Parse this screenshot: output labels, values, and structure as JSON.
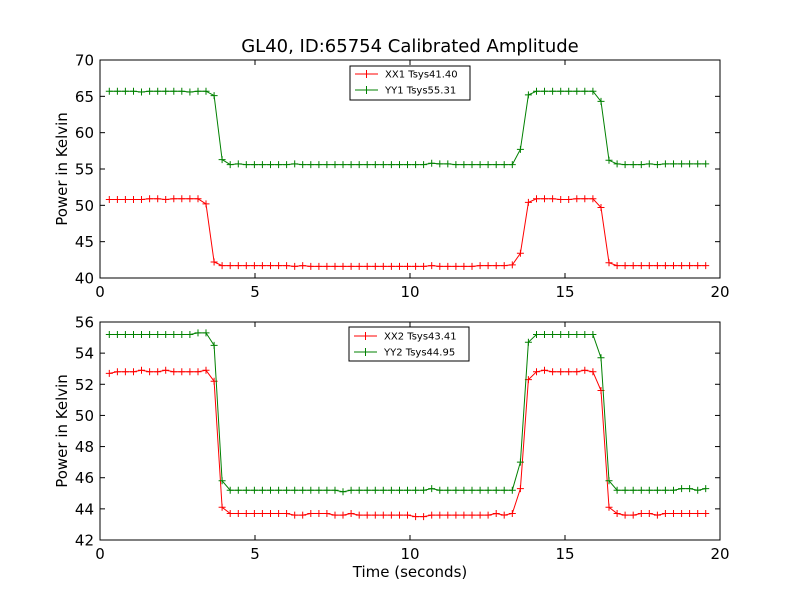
{
  "chart_data": [
    {
      "type": "line",
      "title": "GL40, ID:65754 Calibrated Amplitude",
      "xlabel": "",
      "ylabel": "Power in Kelvin",
      "xlim": [
        0,
        20
      ],
      "ylim": [
        40,
        70
      ],
      "xticks": [
        "0",
        "5",
        "10",
        "15",
        "20"
      ],
      "yticks": [
        "40",
        "45",
        "50",
        "55",
        "60",
        "65",
        "70"
      ],
      "grid": false,
      "legend": "top-center",
      "x": [
        0.3,
        0.56,
        0.82,
        1.08,
        1.34,
        1.6,
        1.86,
        2.12,
        2.38,
        2.64,
        2.9,
        3.16,
        3.42,
        3.68,
        3.94,
        4.2,
        4.46,
        4.72,
        4.98,
        5.24,
        5.5,
        5.76,
        6.02,
        6.28,
        6.54,
        6.8,
        7.06,
        7.32,
        7.58,
        7.84,
        8.1,
        8.36,
        8.62,
        8.88,
        9.14,
        9.4,
        9.66,
        9.92,
        10.18,
        10.44,
        10.7,
        10.96,
        11.22,
        11.48,
        11.74,
        12.0,
        12.26,
        12.52,
        12.78,
        13.04,
        13.3,
        13.56,
        13.82,
        14.08,
        14.34,
        14.6,
        14.86,
        15.12,
        15.38,
        15.64,
        15.9,
        16.16,
        16.42,
        16.68,
        16.94,
        17.2,
        17.46,
        17.72,
        17.98,
        18.24,
        18.5,
        18.76,
        19.02,
        19.28,
        19.54
      ],
      "series": [
        {
          "name": "XX1 Tsys41.40",
          "color": "#ff0000",
          "values": [
            50.8,
            50.8,
            50.8,
            50.8,
            50.8,
            50.9,
            50.9,
            50.8,
            50.9,
            50.9,
            50.9,
            50.9,
            50.2,
            42.2,
            41.7,
            41.7,
            41.7,
            41.7,
            41.7,
            41.7,
            41.7,
            41.7,
            41.7,
            41.6,
            41.7,
            41.6,
            41.6,
            41.6,
            41.6,
            41.6,
            41.6,
            41.6,
            41.6,
            41.6,
            41.6,
            41.6,
            41.6,
            41.6,
            41.6,
            41.6,
            41.7,
            41.6,
            41.6,
            41.6,
            41.6,
            41.6,
            41.7,
            41.7,
            41.7,
            41.7,
            41.8,
            43.4,
            50.4,
            50.9,
            50.9,
            50.9,
            50.8,
            50.8,
            50.9,
            50.9,
            50.9,
            49.7,
            42.1,
            41.7,
            41.7,
            41.7,
            41.7,
            41.7,
            41.7,
            41.7,
            41.7,
            41.7,
            41.7,
            41.7,
            41.7
          ]
        },
        {
          "name": "YY1 Tsys55.31",
          "color": "#008000",
          "values": [
            65.7,
            65.7,
            65.7,
            65.7,
            65.6,
            65.7,
            65.7,
            65.7,
            65.7,
            65.7,
            65.6,
            65.7,
            65.7,
            65.1,
            56.3,
            55.6,
            55.7,
            55.6,
            55.6,
            55.6,
            55.6,
            55.6,
            55.6,
            55.7,
            55.6,
            55.6,
            55.6,
            55.6,
            55.6,
            55.6,
            55.6,
            55.6,
            55.6,
            55.6,
            55.6,
            55.6,
            55.6,
            55.6,
            55.6,
            55.6,
            55.8,
            55.7,
            55.7,
            55.6,
            55.6,
            55.6,
            55.6,
            55.6,
            55.6,
            55.6,
            55.6,
            57.7,
            65.2,
            65.7,
            65.7,
            65.7,
            65.7,
            65.7,
            65.7,
            65.7,
            65.7,
            64.3,
            56.2,
            55.7,
            55.6,
            55.6,
            55.6,
            55.7,
            55.6,
            55.7,
            55.7,
            55.7,
            55.7,
            55.7,
            55.7
          ]
        }
      ]
    },
    {
      "type": "line",
      "title": "",
      "xlabel": "Time (seconds)",
      "ylabel": "Power in Kelvin",
      "xlim": [
        0,
        20
      ],
      "ylim": [
        42,
        56
      ],
      "xticks": [
        "0",
        "5",
        "10",
        "15",
        "20"
      ],
      "yticks": [
        "42",
        "44",
        "46",
        "48",
        "50",
        "52",
        "54",
        "56"
      ],
      "grid": false,
      "legend": "top-center",
      "x": [
        0.3,
        0.56,
        0.82,
        1.08,
        1.34,
        1.6,
        1.86,
        2.12,
        2.38,
        2.64,
        2.9,
        3.16,
        3.42,
        3.68,
        3.94,
        4.2,
        4.46,
        4.72,
        4.98,
        5.24,
        5.5,
        5.76,
        6.02,
        6.28,
        6.54,
        6.8,
        7.06,
        7.32,
        7.58,
        7.84,
        8.1,
        8.36,
        8.62,
        8.88,
        9.14,
        9.4,
        9.66,
        9.92,
        10.18,
        10.44,
        10.7,
        10.96,
        11.22,
        11.48,
        11.74,
        12.0,
        12.26,
        12.52,
        12.78,
        13.04,
        13.3,
        13.56,
        13.82,
        14.08,
        14.34,
        14.6,
        14.86,
        15.12,
        15.38,
        15.64,
        15.9,
        16.16,
        16.42,
        16.68,
        16.94,
        17.2,
        17.46,
        17.72,
        17.98,
        18.24,
        18.5,
        18.76,
        19.02,
        19.28,
        19.54
      ],
      "series": [
        {
          "name": "XX2 Tsys43.41",
          "color": "#ff0000",
          "values": [
            52.7,
            52.8,
            52.8,
            52.8,
            52.9,
            52.8,
            52.8,
            52.9,
            52.8,
            52.8,
            52.8,
            52.8,
            52.9,
            52.2,
            44.1,
            43.7,
            43.7,
            43.7,
            43.7,
            43.7,
            43.7,
            43.7,
            43.7,
            43.6,
            43.6,
            43.7,
            43.7,
            43.7,
            43.6,
            43.6,
            43.7,
            43.6,
            43.6,
            43.6,
            43.6,
            43.6,
            43.6,
            43.6,
            43.5,
            43.5,
            43.6,
            43.6,
            43.6,
            43.6,
            43.6,
            43.6,
            43.6,
            43.6,
            43.7,
            43.6,
            43.7,
            45.3,
            52.3,
            52.8,
            52.9,
            52.8,
            52.8,
            52.8,
            52.8,
            52.9,
            52.8,
            51.6,
            44.1,
            43.7,
            43.6,
            43.6,
            43.7,
            43.7,
            43.6,
            43.7,
            43.7,
            43.7,
            43.7,
            43.7,
            43.7
          ]
        },
        {
          "name": "YY2 Tsys44.95",
          "color": "#008000",
          "values": [
            55.2,
            55.2,
            55.2,
            55.2,
            55.2,
            55.2,
            55.2,
            55.2,
            55.2,
            55.2,
            55.2,
            55.3,
            55.3,
            54.5,
            45.8,
            45.2,
            45.2,
            45.2,
            45.2,
            45.2,
            45.2,
            45.2,
            45.2,
            45.2,
            45.2,
            45.2,
            45.2,
            45.2,
            45.2,
            45.1,
            45.2,
            45.2,
            45.2,
            45.2,
            45.2,
            45.2,
            45.2,
            45.2,
            45.2,
            45.2,
            45.3,
            45.2,
            45.2,
            45.2,
            45.2,
            45.2,
            45.2,
            45.2,
            45.2,
            45.2,
            45.2,
            47.0,
            54.7,
            55.2,
            55.2,
            55.2,
            55.2,
            55.2,
            55.2,
            55.2,
            55.2,
            53.7,
            45.8,
            45.2,
            45.2,
            45.2,
            45.2,
            45.2,
            45.2,
            45.2,
            45.2,
            45.3,
            45.3,
            45.2,
            45.3
          ]
        }
      ]
    }
  ]
}
